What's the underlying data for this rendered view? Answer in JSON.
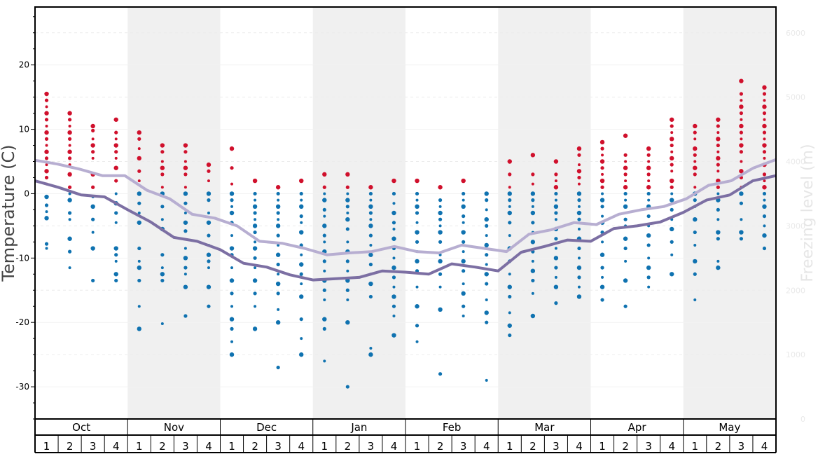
{
  "chart_data": {
    "type": "scatter",
    "title": "",
    "ylabel": "Temperature (C)",
    "y2label": "Freezing level (m)",
    "ylim": [
      -35,
      29
    ],
    "y_ticks": [
      20,
      10,
      0,
      -10,
      -20,
      -30
    ],
    "y_tick_labels": [
      "20",
      "10",
      "0",
      "-10",
      "-20",
      "-30"
    ],
    "y2_ticks": [
      0,
      1000,
      2000,
      3000,
      4000,
      5000,
      6000
    ],
    "y2_tick_labels": [
      "0",
      "1000",
      "2000",
      "3000",
      "4000",
      "5000",
      "6000"
    ],
    "y2lim": [
      0,
      6400
    ],
    "months": [
      "Oct",
      "Nov",
      "Dec",
      "Jan",
      "Feb",
      "Mar",
      "Apr",
      "May"
    ],
    "week_labels": [
      "1",
      "2",
      "3",
      "4"
    ],
    "series": [
      {
        "name": "temperature-line-light",
        "color": "#b7aed1",
        "values": [
          5.2,
          4.6,
          3.8,
          2.8,
          2.8,
          0.5,
          -0.8,
          -3.2,
          -3.8,
          -5,
          -7.4,
          -7.7,
          -8.5,
          -9.5,
          -9.2,
          -9,
          -8.2,
          -9,
          -9.2,
          -8,
          -8.5,
          -9,
          -6.3,
          -5.6,
          -4.5,
          -4.8,
          -3.2,
          -2.5,
          -2,
          -0.8,
          1.3,
          2,
          4,
          5.3
        ]
      },
      {
        "name": "temperature-line-dark",
        "color": "#7c6fa3",
        "values": [
          2,
          1,
          -0.2,
          -0.5,
          -2.5,
          -4.4,
          -6.8,
          -7.4,
          -8.7,
          -10.8,
          -11.4,
          -12.6,
          -13.4,
          -13.2,
          -13,
          -12,
          -12.2,
          -12.5,
          -10.9,
          -11.4,
          -12,
          -9.1,
          -8.2,
          -7.2,
          -7.4,
          -5.4,
          -5,
          -4.4,
          -2.9,
          -1,
          -0.2,
          2,
          2.8
        ]
      }
    ],
    "dots": {
      "warm_color": "#d0102c",
      "cold_color": "#0f72b0",
      "weeks": [
        {
          "month": "Oct",
          "week": "1",
          "values": [
            15.5,
            14.5,
            13.5,
            12.5,
            11.5,
            10.5,
            9.5,
            8.5,
            7.5,
            6.5,
            5.5,
            4.5,
            3.5,
            2.5,
            1.5,
            -0.5,
            -1.8,
            -2.8,
            -3.8,
            -7.8,
            -8.5
          ]
        },
        {
          "month": "Oct",
          "week": "2",
          "values": [
            12.5,
            11.5,
            10.5,
            9.5,
            8.5,
            7.5,
            6.5,
            5.5,
            4.5,
            3,
            1,
            0,
            -1,
            -3,
            -4,
            -7,
            -9,
            -11.5
          ]
        },
        {
          "month": "Oct",
          "week": "3",
          "values": [
            10.5,
            9.8,
            8.5,
            7.5,
            6.5,
            5.5,
            3,
            1,
            -0.5,
            -2,
            -4,
            -6,
            -8.5,
            -13.5
          ]
        },
        {
          "month": "Oct",
          "week": "4",
          "values": [
            11.5,
            9.5,
            8.5,
            7.5,
            6.5,
            5.5,
            4,
            2,
            0,
            -1.5,
            -3,
            -4.5,
            -8.5,
            -9.5,
            -10.5,
            -12.5,
            -13.5
          ]
        },
        {
          "month": "Nov",
          "week": "1",
          "values": [
            9.5,
            8.5,
            7,
            5.5,
            3.5,
            2,
            0,
            -1.5,
            -3,
            -4.5,
            -8.5,
            -10.5,
            -11.5,
            -13.5,
            -17.5,
            -21
          ]
        },
        {
          "month": "Nov",
          "week": "2",
          "values": [
            7.5,
            6.5,
            5,
            4,
            3,
            1,
            0,
            -2,
            -4,
            -5.5,
            -9.5,
            -11.5,
            -12.5,
            -13.5,
            -20.2
          ]
        },
        {
          "month": "Nov",
          "week": "3",
          "values": [
            7.5,
            6.5,
            5,
            4,
            3,
            1,
            0,
            -1.5,
            -3,
            -4.5,
            -5.8,
            -8.5,
            -10,
            -11.5,
            -12.5,
            -14.5,
            -19
          ]
        },
        {
          "month": "Nov",
          "week": "4",
          "values": [
            4.5,
            3.5,
            2,
            0,
            -1,
            -3,
            -4.5,
            -6.5,
            -8,
            -9.5,
            -10.5,
            -11.5,
            -14.5,
            -17.5
          ]
        },
        {
          "month": "Dec",
          "week": "1",
          "values": [
            7,
            4,
            1.5,
            0,
            -1,
            -2,
            -3,
            -4.5,
            -6.5,
            -8.5,
            -9.5,
            -11.5,
            -13.5,
            -15.5,
            -17.5,
            -19.5,
            -21,
            -23,
            -25
          ]
        },
        {
          "month": "Dec",
          "week": "2",
          "values": [
            2,
            0,
            -1,
            -2,
            -3,
            -4,
            -5,
            -6,
            -7.5,
            -8.5,
            -10,
            -11.5,
            -13.5,
            -15.5,
            -17.5,
            -21
          ]
        },
        {
          "month": "Dec",
          "week": "3",
          "values": [
            1,
            0,
            -1,
            -2,
            -3,
            -4,
            -5,
            -6.5,
            -8,
            -9.5,
            -11,
            -12.5,
            -14,
            -15.5,
            -18,
            -20,
            -27
          ]
        },
        {
          "month": "Dec",
          "week": "4",
          "values": [
            2,
            0,
            -1,
            -2,
            -3.5,
            -4.5,
            -6,
            -8,
            -9.5,
            -11,
            -12.5,
            -14,
            -16,
            -19.5,
            -22.5,
            -25
          ]
        },
        {
          "month": "Jan",
          "week": "1",
          "values": [
            3,
            1,
            0,
            -1,
            -2.5,
            -3.5,
            -5,
            -6.5,
            -7.5,
            -9,
            -10.5,
            -12,
            -13.5,
            -15,
            -16.5,
            -19.5,
            -21,
            -26
          ]
        },
        {
          "month": "Jan",
          "week": "2",
          "values": [
            3,
            1,
            0,
            -1,
            -2,
            -3,
            -4,
            -5.5,
            -7.5,
            -9,
            -10.5,
            -12,
            -13.5,
            -15,
            -16.5,
            -20,
            -30
          ]
        },
        {
          "month": "Jan",
          "week": "3",
          "values": [
            1,
            0,
            -1,
            -2,
            -3,
            -4,
            -5,
            -6.5,
            -8,
            -9.5,
            -11,
            -12.5,
            -14,
            -16,
            -24,
            -25
          ]
        },
        {
          "month": "Jan",
          "week": "4",
          "values": [
            2,
            0,
            -1.5,
            -3,
            -4.5,
            -5.5,
            -7,
            -8.5,
            -10,
            -11.5,
            -13,
            -14.5,
            -16,
            -17.5,
            -19,
            -22
          ]
        },
        {
          "month": "Feb",
          "week": "1",
          "values": [
            2,
            0,
            -1,
            -2,
            -3,
            -4.5,
            -6,
            -7.5,
            -9,
            -10.5,
            -12,
            -14.5,
            -17.5,
            -20.5,
            -23
          ]
        },
        {
          "month": "Feb",
          "week": "2",
          "values": [
            1,
            -1,
            -2,
            -3,
            -4,
            -5,
            -6,
            -7.5,
            -9.5,
            -10.5,
            -12.5,
            -14.5,
            -18,
            -28
          ]
        },
        {
          "month": "Feb",
          "week": "3",
          "values": [
            2,
            0,
            -1,
            -2,
            -3.5,
            -4.5,
            -6,
            -7.5,
            -9,
            -10.5,
            -12,
            -14,
            -15.5,
            -17.5,
            -19
          ]
        },
        {
          "month": "Feb",
          "week": "4",
          "values": [
            0,
            -1,
            -2.5,
            -4,
            -5,
            -6.5,
            -8,
            -9.5,
            -11,
            -12.5,
            -14,
            -16.5,
            -18.5,
            -20,
            -29
          ]
        },
        {
          "month": "Mar",
          "week": "1",
          "values": [
            5,
            3,
            1,
            0,
            -1,
            -2,
            -3,
            -4.5,
            -6.5,
            -8.5,
            -10.5,
            -12.5,
            -14.5,
            -16,
            -18.5,
            -20.5,
            -22
          ]
        },
        {
          "month": "Mar",
          "week": "2",
          "values": [
            6,
            3,
            1.5,
            0,
            -1,
            -2,
            -3,
            -4.5,
            -6,
            -7.5,
            -9,
            -10.5,
            -12,
            -13.5,
            -15.5,
            -19
          ]
        },
        {
          "month": "Mar",
          "week": "3",
          "values": [
            5,
            3,
            2,
            1,
            0,
            -1,
            -2,
            -3,
            -4,
            -5.5,
            -7,
            -8.5,
            -10,
            -11.5,
            -13,
            -14.5,
            -17
          ]
        },
        {
          "month": "Mar",
          "week": "4",
          "values": [
            7,
            6,
            4.5,
            3.5,
            2.5,
            1.5,
            0,
            -1,
            -2,
            -3,
            -4,
            -5.5,
            -7,
            -8.5,
            -10,
            -11.5,
            -13,
            -14.5,
            -16
          ]
        },
        {
          "month": "Apr",
          "week": "1",
          "values": [
            8,
            7,
            6,
            5,
            4,
            3,
            2,
            1,
            0,
            -1,
            -2,
            -3.5,
            -4.5,
            -6,
            -7.5,
            -9.5,
            -11.5,
            -13,
            -14.5,
            -16.5
          ]
        },
        {
          "month": "Apr",
          "week": "2",
          "values": [
            9,
            6,
            5,
            4,
            3,
            2,
            1,
            0,
            -1,
            -2,
            -4,
            -5,
            -7,
            -8.5,
            -10.5,
            -13.5,
            -17.5
          ]
        },
        {
          "month": "Apr",
          "week": "3",
          "values": [
            7,
            6,
            5,
            4,
            3,
            2,
            1,
            0,
            -1,
            -2,
            -3.5,
            -5,
            -6.5,
            -8,
            -10,
            -11.5,
            -13,
            -14.5
          ]
        },
        {
          "month": "Apr",
          "week": "4",
          "values": [
            11.5,
            10.5,
            9.5,
            8.5,
            7.5,
            6.5,
            5.5,
            4.5,
            3.5,
            2,
            1,
            0,
            -1,
            -2.5,
            -4,
            -5.5,
            -7.5,
            -9.5,
            -12.5
          ]
        },
        {
          "month": "May",
          "week": "1",
          "values": [
            10.5,
            9.5,
            8.5,
            7,
            6,
            5,
            4,
            3,
            1,
            0,
            -1,
            -2,
            -4,
            -6,
            -8,
            -10.5,
            -12.5,
            -16.5
          ]
        },
        {
          "month": "May",
          "week": "2",
          "values": [
            11.5,
            10.5,
            9.5,
            8.5,
            7.5,
            6.5,
            5.5,
            4.5,
            3.5,
            2,
            1,
            0,
            -1,
            -2.5,
            -4,
            -6,
            -7,
            -10.5,
            -11.5
          ]
        },
        {
          "month": "May",
          "week": "3",
          "values": [
            17.5,
            15.5,
            14.5,
            13.5,
            12.5,
            11.5,
            10.5,
            9.5,
            8.5,
            7.5,
            6.5,
            5,
            3.5,
            2.5,
            1,
            0,
            -1.5,
            -4,
            -6,
            -7
          ]
        },
        {
          "month": "May",
          "week": "4",
          "values": [
            16.5,
            15.5,
            14.5,
            13.5,
            12.5,
            11.5,
            10.5,
            9.5,
            8.5,
            7.5,
            6.5,
            5.5,
            4.5,
            3,
            2,
            1,
            0,
            -1,
            -2,
            -3.5,
            -5,
            -6.5,
            -8.5
          ]
        }
      ]
    }
  }
}
